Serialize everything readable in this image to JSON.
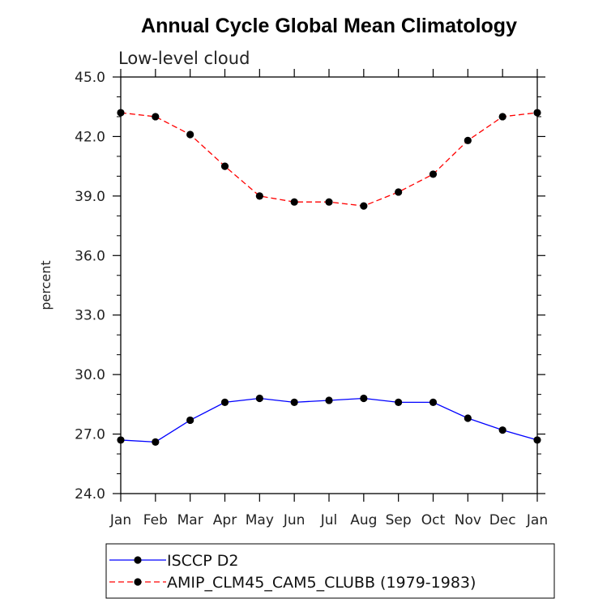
{
  "chart_data": {
    "type": "line",
    "title": "Annual Cycle Global Mean Climatology",
    "subtitle": "Low-level cloud",
    "ylabel": "percent",
    "xlabel": "",
    "categories": [
      "Jan",
      "Feb",
      "Mar",
      "Apr",
      "May",
      "Jun",
      "Jul",
      "Aug",
      "Sep",
      "Oct",
      "Nov",
      "Dec",
      "Jan"
    ],
    "ylim": [
      24.0,
      45.0
    ],
    "yticks": [
      24.0,
      27.0,
      30.0,
      33.0,
      36.0,
      39.0,
      42.0,
      45.0
    ],
    "ytick_labels": [
      "24.0",
      "27.0",
      "30.0",
      "33.0",
      "36.0",
      "39.0",
      "42.0",
      "45.0"
    ],
    "yminor_step": 1.0,
    "grid": false,
    "legend_position": "bottom",
    "series": [
      {
        "name": "ISCCP D2",
        "color": "#0000ff",
        "dash": "solid",
        "values": [
          26.7,
          26.6,
          27.7,
          28.6,
          28.8,
          28.6,
          28.7,
          28.8,
          28.6,
          28.6,
          27.8,
          27.2,
          26.7
        ]
      },
      {
        "name": "AMIP_CLM45_CAM5_CLUBB (1979-1983)",
        "color": "#ff0000",
        "dash": "dashed",
        "values": [
          43.2,
          43.0,
          42.1,
          40.5,
          39.0,
          38.7,
          38.7,
          38.5,
          39.2,
          40.1,
          41.8,
          43.0,
          43.2
        ]
      }
    ]
  }
}
